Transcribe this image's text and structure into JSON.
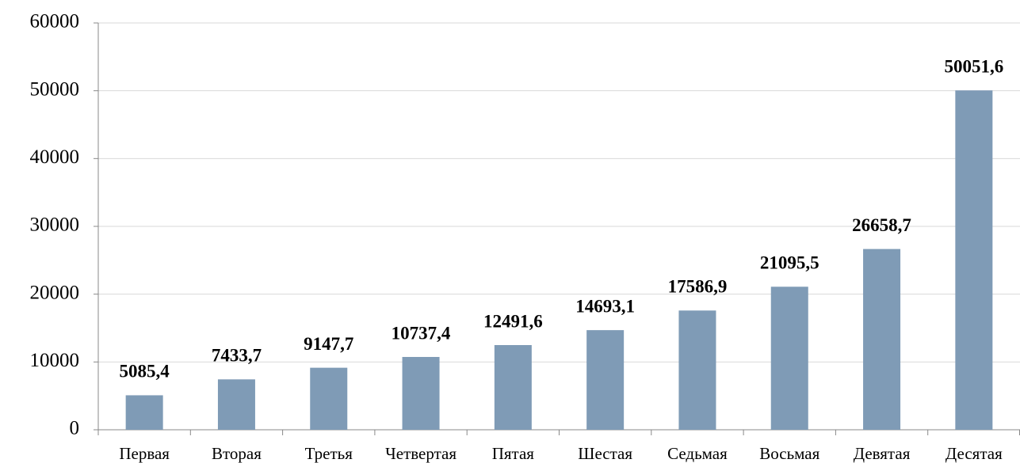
{
  "chart_data": {
    "type": "bar",
    "categories": [
      "Первая",
      "Вторая",
      "Третья",
      "Четвертая",
      "Пятая",
      "Шестая",
      "Седьмая",
      "Восьмая",
      "Девятая",
      "Десятая"
    ],
    "values": [
      5085.4,
      7433.7,
      9147.7,
      10737.4,
      12491.6,
      14693.1,
      17586.9,
      21095.5,
      26658.7,
      50051.6
    ],
    "value_labels": [
      "5085,4",
      "7433,7",
      "9147,7",
      "10737,4",
      "12491,6",
      "14693,1",
      "17586,9",
      "21095,5",
      "26658,7",
      "50051,6"
    ],
    "color": "#7f9bb6",
    "ylim": [
      0,
      60000
    ],
    "yticks": [
      0,
      10000,
      20000,
      30000,
      40000,
      50000,
      60000
    ],
    "grid": true
  }
}
